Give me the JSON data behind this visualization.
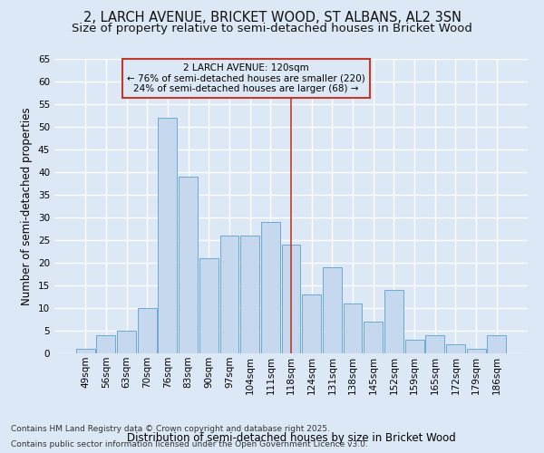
{
  "title": "2, LARCH AVENUE, BRICKET WOOD, ST ALBANS, AL2 3SN",
  "subtitle": "Size of property relative to semi-detached houses in Bricket Wood",
  "xlabel": "Distribution of semi-detached houses by size in Bricket Wood",
  "ylabel": "Number of semi-detached properties",
  "categories": [
    "49sqm",
    "56sqm",
    "63sqm",
    "70sqm",
    "76sqm",
    "83sqm",
    "90sqm",
    "97sqm",
    "104sqm",
    "111sqm",
    "118sqm",
    "124sqm",
    "131sqm",
    "138sqm",
    "145sqm",
    "152sqm",
    "159sqm",
    "165sqm",
    "172sqm",
    "179sqm",
    "186sqm"
  ],
  "values": [
    1,
    4,
    5,
    10,
    52,
    39,
    21,
    26,
    26,
    29,
    24,
    13,
    19,
    11,
    7,
    14,
    3,
    4,
    2,
    1,
    4
  ],
  "bar_color": "#c5d8ee",
  "bar_edge_color": "#6aaad4",
  "background_color": "#dce8f5",
  "grid_color": "#ffffff",
  "marker_index": 10,
  "annotation_title": "2 LARCH AVENUE: 120sqm",
  "annotation_line1": "← 76% of semi-detached houses are smaller (220)",
  "annotation_line2": "24% of semi-detached houses are larger (68) →",
  "marker_color": "#c0392b",
  "annotation_box_color": "#c0392b",
  "ylim": [
    0,
    65
  ],
  "yticks": [
    0,
    5,
    10,
    15,
    20,
    25,
    30,
    35,
    40,
    45,
    50,
    55,
    60,
    65
  ],
  "footnote1": "Contains HM Land Registry data © Crown copyright and database right 2025.",
  "footnote2": "Contains public sector information licensed under the Open Government Licence v3.0.",
  "title_fontsize": 10.5,
  "subtitle_fontsize": 9.5,
  "axis_label_fontsize": 8.5,
  "tick_fontsize": 7.5,
  "annotation_fontsize": 7.5,
  "footnote_fontsize": 6.5
}
